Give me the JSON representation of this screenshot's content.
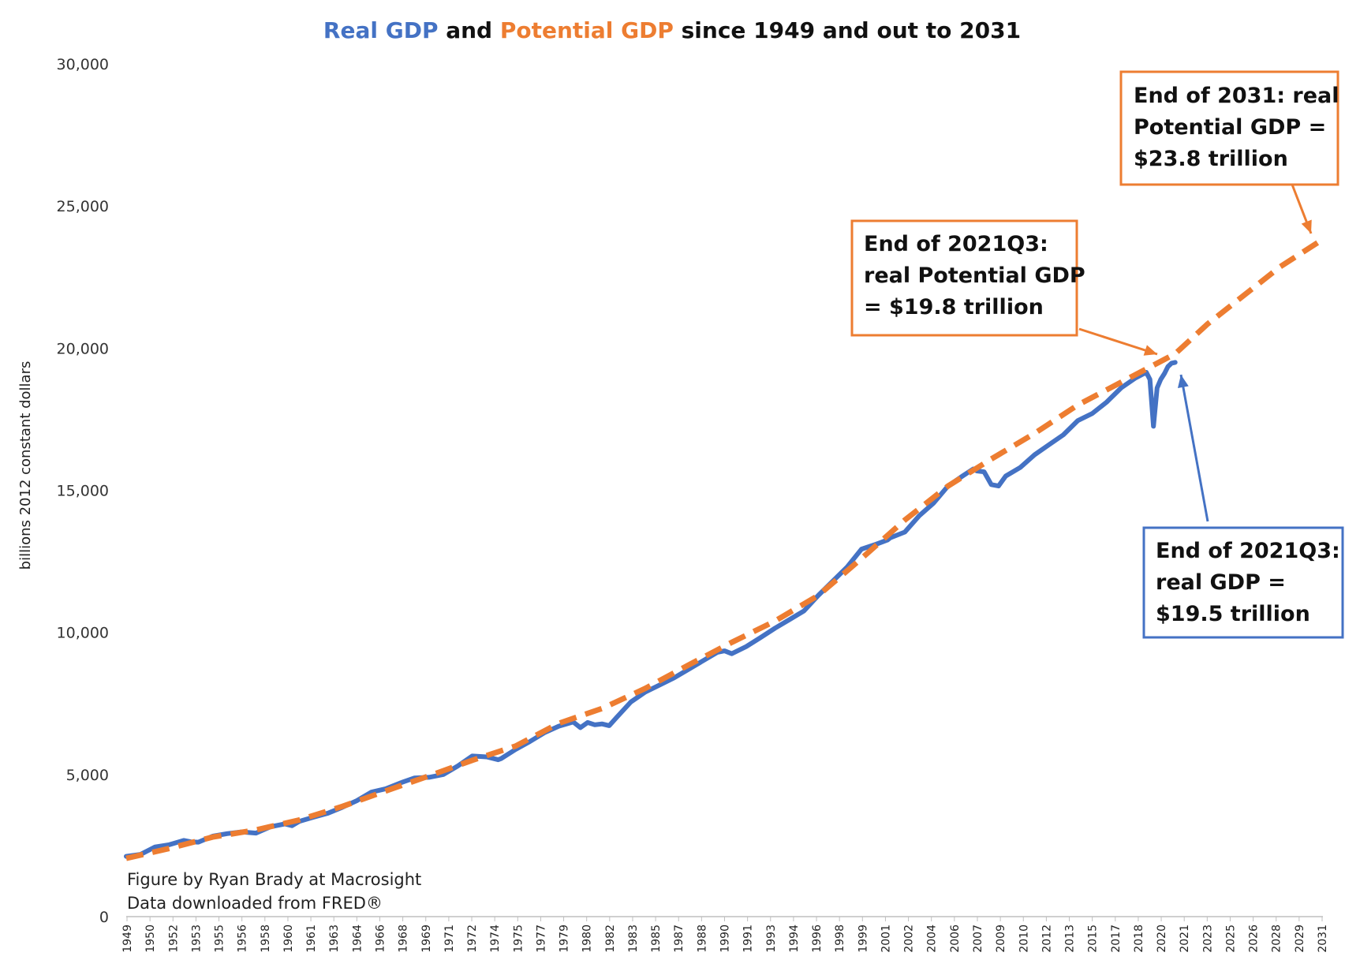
{
  "colors": {
    "real_gdp": "#4472C4",
    "potential_gdp": "#ED7D31",
    "text": "#111111",
    "axis": "#bfbfbf"
  },
  "title": {
    "part1": "Real GDP",
    "part2": " and ",
    "part3": "Potential GDP",
    "part4": " since 1949 and out to 2031"
  },
  "credit": {
    "line1": "Figure by Ryan Brady at Macrosight",
    "line2": "Data downloaded from FRED®"
  },
  "annotations": {
    "potential_2031": [
      "End of 2031: real",
      "Potential GDP =",
      "$23.8 trillion"
    ],
    "potential_2021q3": [
      "End of 2021Q3:",
      "real Potential GDP",
      "= $19.8 trillion"
    ],
    "real_2021q3": [
      "End of 2021Q3:",
      "real GDP =",
      "$19.5 trillion"
    ]
  },
  "chart_data": {
    "type": "line",
    "title": "Real GDP and Potential GDP since 1949 and out to 2031",
    "xlabel": "",
    "ylabel": "billions 2012 constant dollars",
    "xlim": [
      1949,
      2032
    ],
    "ylim": [
      0,
      30000
    ],
    "yticks": [
      0,
      5000,
      10000,
      15000,
      20000,
      25000,
      30000
    ],
    "ytick_labels": [
      "0",
      "5,000",
      "10,000",
      "15,000",
      "20,000",
      "25,000",
      "30,000"
    ],
    "xtick_labels": [
      "1949",
      "1950",
      "1952",
      "1953",
      "1955",
      "1956",
      "1958",
      "1960",
      "1961",
      "1963",
      "1964",
      "1966",
      "1968",
      "1969",
      "1971",
      "1972",
      "1974",
      "1975",
      "1977",
      "1979",
      "1980",
      "1982",
      "1983",
      "1985",
      "1987",
      "1988",
      "1990",
      "1991",
      "1993",
      "1994",
      "1996",
      "1998",
      "1999",
      "2001",
      "2002",
      "2004",
      "2006",
      "2007",
      "2009",
      "2010",
      "2012",
      "2013",
      "2015",
      "2017",
      "2018",
      "2020",
      "2021",
      "2023",
      "2025",
      "2026",
      "2028",
      "2029",
      "2031"
    ],
    "legend": "none",
    "grid": false,
    "series": [
      {
        "name": "Real GDP",
        "style": "solid",
        "x": [
          1949.0,
          1950.0,
          1951.0,
          1952.0,
          1953.0,
          1953.5,
          1954.0,
          1955.0,
          1956.0,
          1957.0,
          1958.0,
          1959.0,
          1960.0,
          1960.5,
          1961.0,
          1962.0,
          1963.0,
          1964.0,
          1965.0,
          1966.0,
          1967.0,
          1968.0,
          1969.0,
          1970.0,
          1971.0,
          1972.0,
          1973.0,
          1974.0,
          1974.8,
          1975.0,
          1976.0,
          1977.0,
          1978.0,
          1979.0,
          1980.0,
          1980.5,
          1981.0,
          1981.5,
          1982.0,
          1982.5,
          1983.0,
          1984.0,
          1985.0,
          1986.0,
          1987.0,
          1988.0,
          1989.0,
          1990.0,
          1990.5,
          1991.0,
          1992.0,
          1993.0,
          1994.0,
          1995.0,
          1996.0,
          1997.0,
          1998.0,
          1999.0,
          2000.0,
          2001.0,
          2001.8,
          2002.0,
          2003.0,
          2004.0,
          2005.0,
          2006.0,
          2007.0,
          2007.75,
          2008.0,
          2008.5,
          2009.0,
          2009.5,
          2010.0,
          2011.0,
          2012.0,
          2013.0,
          2014.0,
          2015.0,
          2016.0,
          2017.0,
          2018.0,
          2019.0,
          2019.75,
          2020.0,
          2020.25,
          2020.5,
          2020.75,
          2021.0,
          2021.25,
          2021.5,
          2021.75
        ],
        "y": [
          2120,
          2190,
          2450,
          2530,
          2680,
          2630,
          2620,
          2830,
          2920,
          2980,
          2940,
          3160,
          3260,
          3200,
          3350,
          3500,
          3640,
          3850,
          4080,
          4380,
          4500,
          4700,
          4880,
          4900,
          5000,
          5300,
          5650,
          5620,
          5520,
          5560,
          5880,
          6160,
          6470,
          6700,
          6850,
          6650,
          6830,
          6750,
          6780,
          6720,
          7000,
          7550,
          7900,
          8150,
          8400,
          8700,
          9000,
          9300,
          9350,
          9250,
          9500,
          9820,
          10150,
          10450,
          10750,
          11300,
          11800,
          12300,
          12930,
          13100,
          13250,
          13330,
          13530,
          14100,
          14550,
          15150,
          15500,
          15750,
          15680,
          15650,
          15200,
          15150,
          15500,
          15800,
          16250,
          16600,
          16950,
          17450,
          17700,
          18100,
          18600,
          18950,
          19150,
          18900,
          17250,
          18600,
          18900,
          19100,
          19350,
          19470,
          19500
        ]
      },
      {
        "name": "Potential GDP",
        "style": "dashed",
        "x": [
          1949,
          1952,
          1955,
          1958,
          1961,
          1964,
          1967,
          1970,
          1973,
          1976,
          1979,
          1982,
          1985,
          1988,
          1991,
          1994,
          1997,
          2000,
          2003,
          2006,
          2009,
          2012,
          2015,
          2018,
          2021.75,
          2024,
          2027,
          2029,
          2031.9
        ],
        "y": [
          2050,
          2400,
          2800,
          3050,
          3400,
          3880,
          4420,
          4950,
          5500,
          6000,
          6800,
          7320,
          8030,
          8850,
          9650,
          10400,
          11300,
          12600,
          13950,
          15150,
          16100,
          17000,
          18000,
          18800,
          19800,
          20850,
          22050,
          22850,
          23800
        ]
      }
    ]
  }
}
